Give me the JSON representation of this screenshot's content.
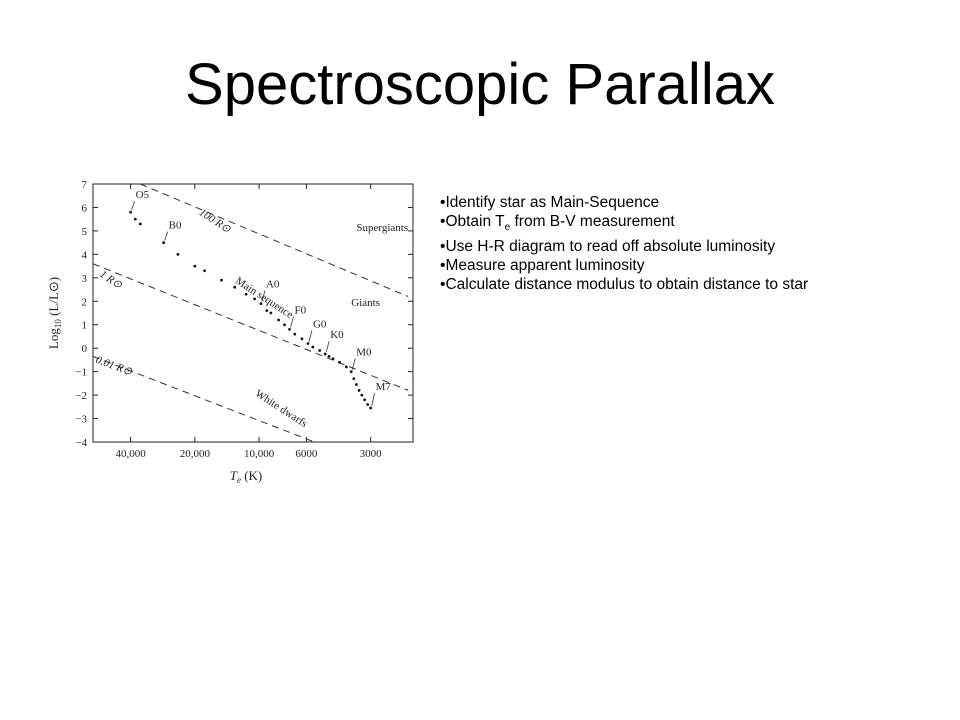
{
  "slide": {
    "title": "Spectroscopic Parallax",
    "bullet_marker": "•",
    "bullets": [
      {
        "text": "Identify star as Main-Sequence"
      },
      {
        "text_pre": "Obtain T",
        "subscript": "e",
        "text_post": " from B-V measurement"
      },
      {
        "text": "Use H-R diagram to read off absolute luminosity"
      },
      {
        "text": "Measure apparent luminosity"
      },
      {
        "text": "Calculate distance modulus to obtain distance to star"
      }
    ]
  },
  "chart_data": {
    "type": "scatter",
    "x_scale": "log-reversed",
    "xlabel": {
      "main": "T",
      "sub": "e",
      "suffix": " (K)"
    },
    "ylabel": {
      "main": "Log",
      "sub": "10",
      "suffix": " (L/L⊙)"
    },
    "xlim": [
      60000,
      1900
    ],
    "ylim": [
      -4,
      7
    ],
    "xticks": [
      {
        "value": 40000,
        "label": "40,000"
      },
      {
        "value": 20000,
        "label": "20,000"
      },
      {
        "value": 10000,
        "label": "10,000"
      },
      {
        "value": 6000,
        "label": "6000"
      },
      {
        "value": 3000,
        "label": "3000"
      }
    ],
    "yticks": [
      {
        "value": 7,
        "label": "7"
      },
      {
        "value": 6,
        "label": "6"
      },
      {
        "value": 5,
        "label": "5"
      },
      {
        "value": 4,
        "label": "4"
      },
      {
        "value": 3,
        "label": "3"
      },
      {
        "value": 2,
        "label": "2"
      },
      {
        "value": 1,
        "label": "1"
      },
      {
        "value": 0,
        "label": "0"
      },
      {
        "value": -1,
        "label": "−1"
      },
      {
        "value": -2,
        "label": "−2"
      },
      {
        "value": -3,
        "label": "−3"
      },
      {
        "value": -4,
        "label": "−4"
      }
    ],
    "radius_lines": [
      {
        "label": "100 R⊙",
        "points": [
          [
            36000,
            7
          ],
          [
            2000,
            2.2
          ]
        ]
      },
      {
        "label": "1 R⊙",
        "points": [
          [
            60000,
            3.6
          ],
          [
            2000,
            -1.8
          ]
        ]
      },
      {
        "label": "0.01 R⊙",
        "points": [
          [
            60000,
            -0.35
          ],
          [
            5500,
            -4
          ]
        ]
      }
    ],
    "region_labels": [
      {
        "label": "Supergiants",
        "x": 3500,
        "y": 5.0
      },
      {
        "label": "Giants",
        "x": 3700,
        "y": 1.8
      },
      {
        "label": "Main sequence",
        "x": 13000,
        "y": 2.8,
        "angle": 33
      },
      {
        "label": "White dwarfs",
        "x": 10500,
        "y": -2.0,
        "angle": 33
      }
    ],
    "main_sequence": [
      {
        "x": 40000,
        "y": 5.8
      },
      {
        "x": 38000,
        "y": 5.5
      },
      {
        "x": 36000,
        "y": 5.3
      },
      {
        "x": 28000,
        "y": 4.5
      },
      {
        "x": 24000,
        "y": 4.0
      },
      {
        "x": 20000,
        "y": 3.5
      },
      {
        "x": 18000,
        "y": 3.3
      },
      {
        "x": 15000,
        "y": 2.9
      },
      {
        "x": 13000,
        "y": 2.6
      },
      {
        "x": 11500,
        "y": 2.3
      },
      {
        "x": 10500,
        "y": 2.1
      },
      {
        "x": 9800,
        "y": 1.9
      },
      {
        "x": 9200,
        "y": 1.6
      },
      {
        "x": 8800,
        "y": 1.5
      },
      {
        "x": 8100,
        "y": 1.2
      },
      {
        "x": 7600,
        "y": 1.0
      },
      {
        "x": 7200,
        "y": 0.8
      },
      {
        "x": 6800,
        "y": 0.6
      },
      {
        "x": 6300,
        "y": 0.4
      },
      {
        "x": 5900,
        "y": 0.2
      },
      {
        "x": 5600,
        "y": 0.05
      },
      {
        "x": 5200,
        "y": -0.1
      },
      {
        "x": 4900,
        "y": -0.25
      },
      {
        "x": 4700,
        "y": -0.35
      },
      {
        "x": 4500,
        "y": -0.45
      },
      {
        "x": 4200,
        "y": -0.6
      },
      {
        "x": 3900,
        "y": -0.8
      },
      {
        "x": 3700,
        "y": -1.0
      },
      {
        "x": 3600,
        "y": -1.3
      },
      {
        "x": 3500,
        "y": -1.55
      },
      {
        "x": 3400,
        "y": -1.8
      },
      {
        "x": 3300,
        "y": -2.0
      },
      {
        "x": 3200,
        "y": -2.2
      },
      {
        "x": 3100,
        "y": -2.4
      },
      {
        "x": 3000,
        "y": -2.55
      }
    ],
    "spectral_labels": [
      {
        "label": "O5",
        "x": 40000,
        "y": 5.8,
        "dx": 4,
        "dy": -14
      },
      {
        "label": "B0",
        "x": 28000,
        "y": 4.5,
        "dx": 4,
        "dy": -14
      },
      {
        "label": "A0",
        "x": 9800,
        "y": 1.9,
        "dx": 4,
        "dy": -16
      },
      {
        "label": "F0",
        "x": 7200,
        "y": 0.8,
        "dx": 4,
        "dy": -16
      },
      {
        "label": "G0",
        "x": 5900,
        "y": 0.2,
        "dx": 4,
        "dy": -16
      },
      {
        "label": "K0",
        "x": 4900,
        "y": -0.25,
        "dx": 4,
        "dy": -16
      },
      {
        "label": "M0",
        "x": 3700,
        "y": -1.0,
        "dx": 4,
        "dy": -16
      },
      {
        "label": "M7",
        "x": 3000,
        "y": -2.55,
        "dx": 4,
        "dy": -18
      }
    ],
    "grid": false,
    "legend": "none"
  }
}
